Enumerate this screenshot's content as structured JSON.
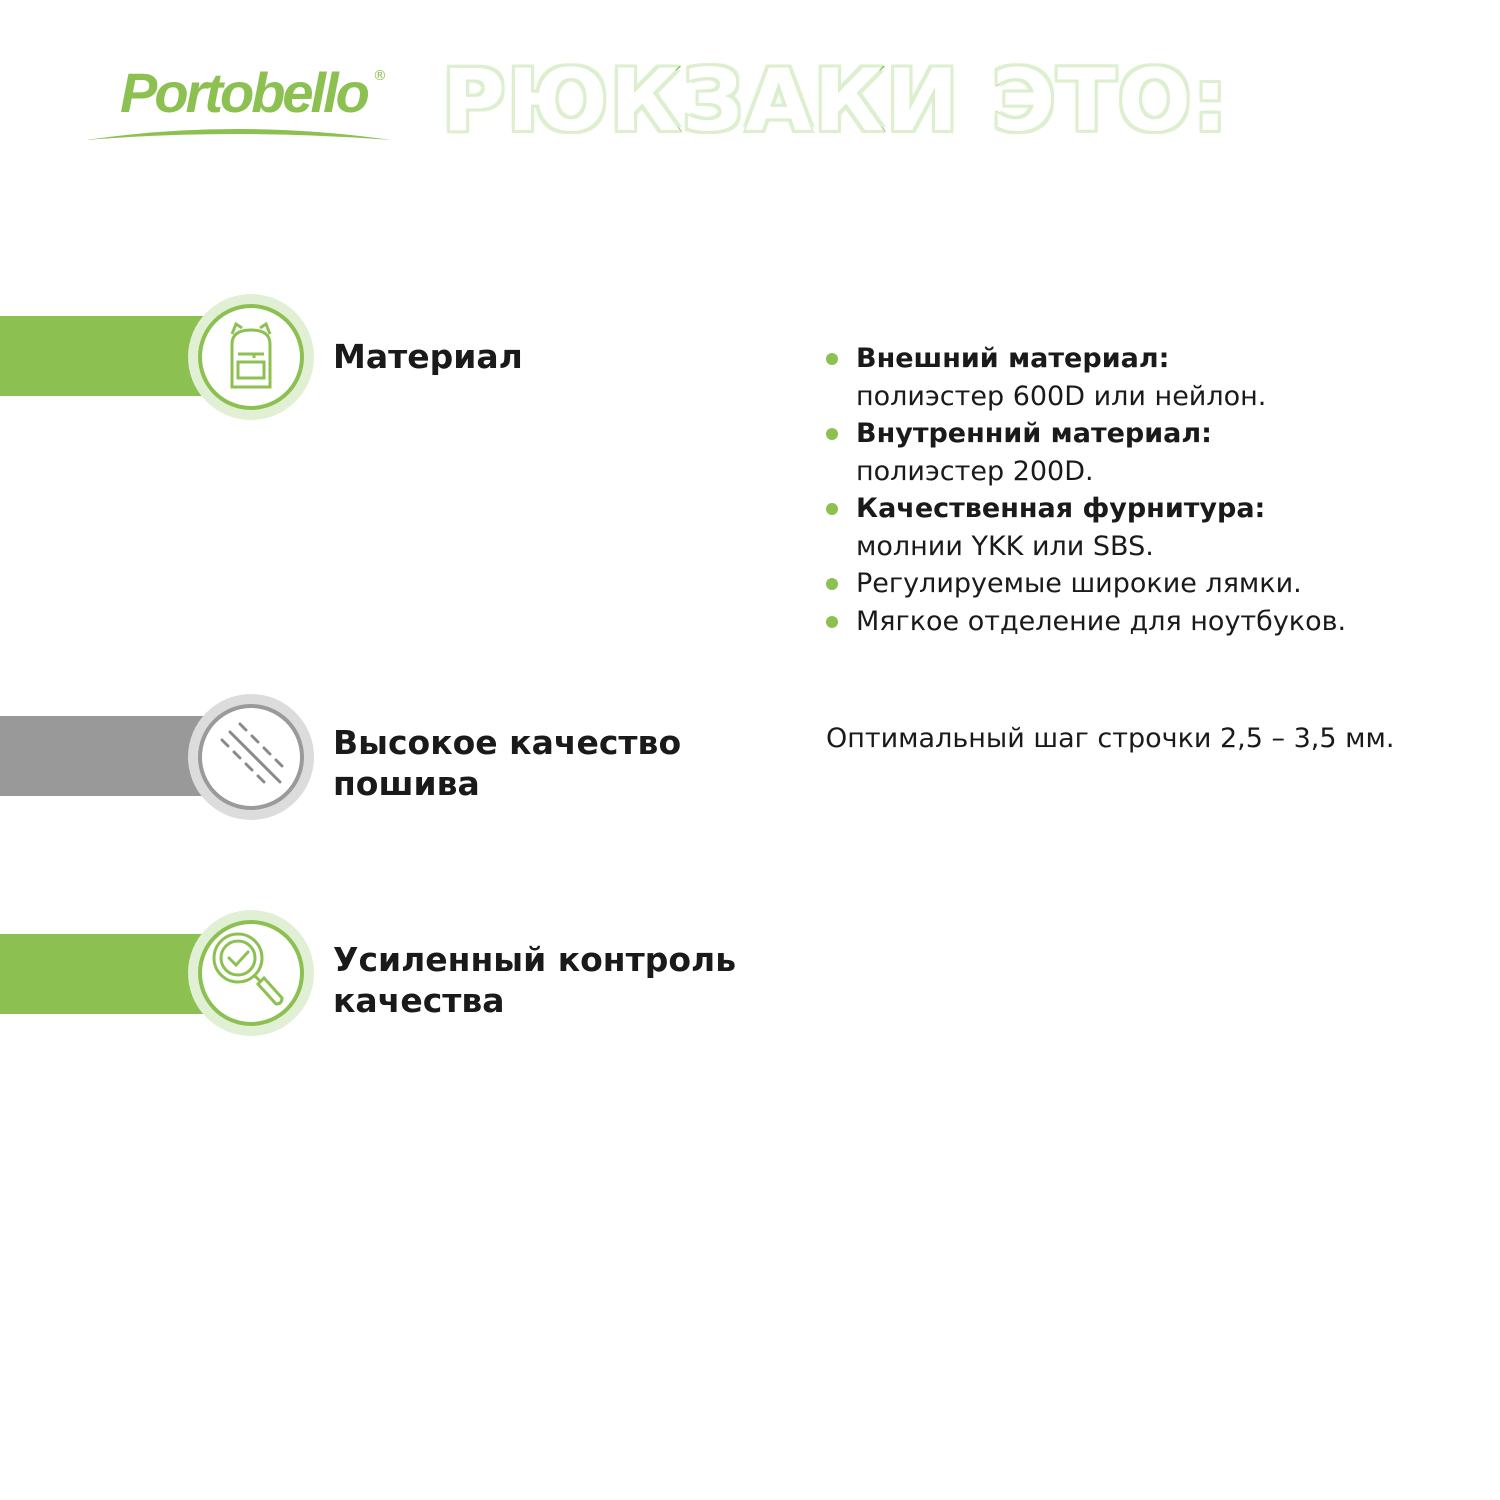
{
  "brand": {
    "name": "Portobello",
    "registered": "®",
    "color": "#8cc152"
  },
  "headline": "РЮКЗАКИ ЭТО:",
  "features": [
    {
      "title_lines": [
        "Материал"
      ],
      "icon": "backpack-icon",
      "accent": "#8cc152"
    },
    {
      "title_lines": [
        "Высокое качество",
        "пошива"
      ],
      "icon": "stitches-icon",
      "accent": "#999999"
    },
    {
      "title_lines": [
        "Усиленный контроль",
        "качества"
      ],
      "icon": "magnifier-check-icon",
      "accent": "#8cc152"
    }
  ],
  "material_details": [
    {
      "bold": "Внешний материал:",
      "text": "полиэстер 600D или нейлон."
    },
    {
      "bold": "Внутренний материал:",
      "text": "полиэстер 200D."
    },
    {
      "bold": "Качественная фурнитура:",
      "text": "молнии YKK или SBS."
    },
    {
      "bold": "",
      "text": "Регулируемые широкие лямки."
    },
    {
      "bold": "",
      "text": "Мягкое отделение для ноутбуков."
    }
  ],
  "stitch_note": "Оптимальный шаг строчки 2,5 – 3,5 мм."
}
